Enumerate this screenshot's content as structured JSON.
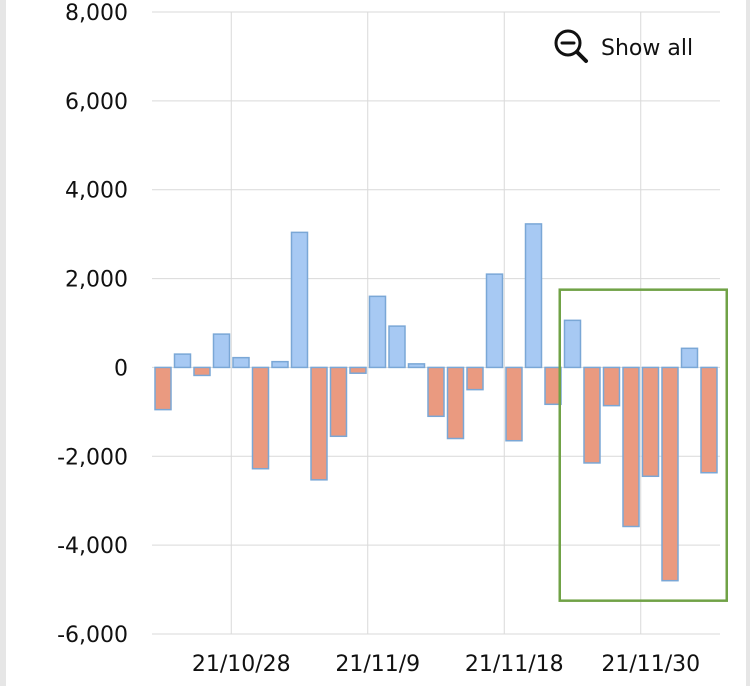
{
  "show_all": {
    "label": "Show all",
    "icon": "zoom-out-icon"
  },
  "colors": {
    "positive": "#a7c9f3",
    "negative": "#ea9a80",
    "bar_stroke": "#7aa7d6",
    "grid": "#d9d9d9",
    "highlight_box": "#70a246"
  },
  "chart_data": {
    "type": "bar",
    "title": "",
    "xlabel": "",
    "ylabel": "",
    "ylim": [
      -6000,
      8000
    ],
    "yticks": [
      8000,
      6000,
      4000,
      2000,
      0,
      -2000,
      -4000,
      -6000
    ],
    "ytick_labels": [
      "8,000",
      "6,000",
      "4,000",
      "2,000",
      "0",
      "-2,000",
      "-4,000",
      "-6,000"
    ],
    "xtick_labels": [
      "21/10/28",
      "21/11/9",
      "21/11/18",
      "21/11/30"
    ],
    "xtick_bar_index": [
      3.5,
      10.5,
      17.5,
      24.5
    ],
    "values": [
      -950,
      300,
      -180,
      750,
      220,
      -2280,
      130,
      3040,
      -2530,
      -1550,
      -130,
      1600,
      930,
      80,
      -1100,
      -1600,
      -500,
      2100,
      -1650,
      3230,
      -830,
      1060,
      -2150,
      -860,
      -3580,
      -2450,
      -4800,
      430,
      -2370
    ],
    "highlight": {
      "from_index": 21,
      "to_index": 28,
      "ymin": -5250,
      "ymax": 1750
    },
    "grid": true,
    "legend": "none"
  }
}
